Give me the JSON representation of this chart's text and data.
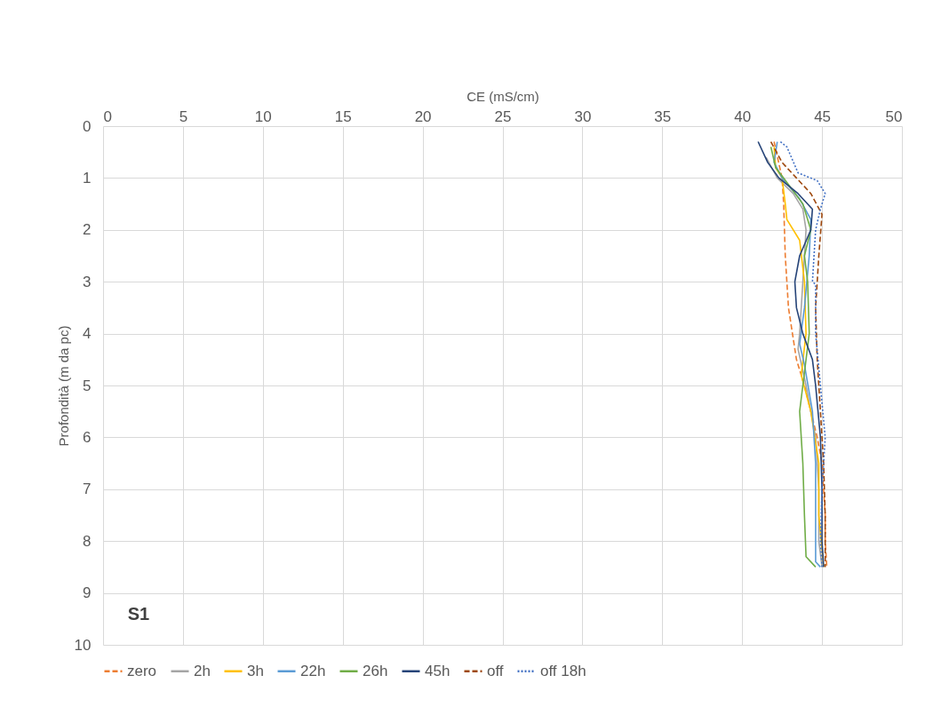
{
  "chart_data": {
    "type": "line",
    "xlabel": "CE (mS/cm)",
    "ylabel": "Profondità (m da pc)",
    "xlim": [
      0,
      50
    ],
    "xticks": [
      0,
      5,
      10,
      15,
      20,
      25,
      30,
      35,
      40,
      45,
      50
    ],
    "ylim": [
      10,
      0
    ],
    "yticks": [
      0,
      1,
      2,
      3,
      4,
      5,
      6,
      7,
      8,
      9,
      10
    ],
    "grid": true,
    "legend": "bottom",
    "annotations": [
      "S1"
    ],
    "series": [
      {
        "name": "zero",
        "color": "#ed7d31",
        "line_style": "dashed",
        "x": [
          42.0,
          42.5,
          42.6,
          42.7,
          42.9,
          43.4,
          43.6,
          43.9,
          44.3,
          44.7,
          45.0,
          45.1,
          45.2,
          45.2,
          45.3
        ],
        "values": [
          0.3,
          1.0,
          1.5,
          2.5,
          3.5,
          4.5,
          4.7,
          5.0,
          5.5,
          6.0,
          6.5,
          7.0,
          7.5,
          8.0,
          8.5
        ]
      },
      {
        "name": "2h",
        "color": "#a5a5a5",
        "line_style": "solid",
        "x": [
          41.5,
          42.2,
          43.2,
          43.8,
          44.0,
          43.8,
          43.6,
          43.5,
          44.0,
          44.6,
          44.8,
          44.8,
          45.0
        ],
        "values": [
          0.6,
          1.0,
          1.3,
          1.6,
          2.0,
          3.0,
          4.0,
          4.3,
          5.0,
          6.0,
          7.0,
          8.0,
          8.5
        ]
      },
      {
        "name": "3h",
        "color": "#ffc000",
        "line_style": "solid",
        "x": [
          42.0,
          42.1,
          42.5,
          42.7,
          42.8,
          43.6,
          43.9,
          44.0,
          43.7,
          44.3,
          44.8,
          44.8,
          45.1
        ],
        "values": [
          0.4,
          0.8,
          1.0,
          1.5,
          1.8,
          2.2,
          3.0,
          4.0,
          4.8,
          5.5,
          6.5,
          7.5,
          8.5
        ]
      },
      {
        "name": "22h",
        "color": "#5b9bd5",
        "line_style": "solid",
        "x": [
          42.2,
          42.0,
          42.5,
          43.6,
          44.3,
          44.2,
          43.9,
          43.6,
          43.9,
          44.4,
          44.6,
          44.6,
          44.6,
          44.9
        ],
        "values": [
          0.3,
          0.7,
          1.0,
          1.4,
          1.8,
          2.5,
          3.5,
          4.2,
          4.6,
          5.5,
          6.5,
          7.5,
          8.4,
          8.5
        ]
      },
      {
        "name": "26h",
        "color": "#70ad47",
        "line_style": "solid",
        "x": [
          41.8,
          42.1,
          42.6,
          43.8,
          44.3,
          43.9,
          44.1,
          44.2,
          43.8,
          43.6,
          43.8,
          43.9,
          44.0,
          44.6
        ],
        "values": [
          0.4,
          0.8,
          1.0,
          1.5,
          2.0,
          2.5,
          3.0,
          4.0,
          5.0,
          5.5,
          6.5,
          7.5,
          8.3,
          8.5
        ]
      },
      {
        "name": "45h",
        "color": "#264478",
        "line_style": "solid",
        "x": [
          41.0,
          41.6,
          42.3,
          43.5,
          44.4,
          44.3,
          43.6,
          43.3,
          43.4,
          43.8,
          44.4,
          44.6,
          44.9,
          45.0,
          45.0,
          45.1
        ],
        "values": [
          0.3,
          0.7,
          1.0,
          1.3,
          1.6,
          2.0,
          2.5,
          3.0,
          3.5,
          4.0,
          4.5,
          5.0,
          6.0,
          7.0,
          8.0,
          8.5
        ]
      },
      {
        "name": "off",
        "color": "#9e480e",
        "line_style": "dashed",
        "x": [
          41.8,
          42.5,
          43.4,
          44.3,
          45.0,
          44.8,
          44.6,
          44.7,
          44.9,
          45.1,
          45.2,
          45.2
        ],
        "values": [
          0.3,
          0.7,
          1.0,
          1.3,
          1.7,
          2.5,
          3.5,
          4.5,
          5.5,
          6.5,
          7.5,
          8.5
        ]
      },
      {
        "name": "off 18h",
        "color": "#4472c4",
        "line_style": "dotted",
        "x": [
          42.4,
          42.8,
          43.5,
          44.7,
          45.2,
          44.9,
          44.6,
          44.4,
          44.6,
          44.6,
          44.9,
          45.2,
          45.0,
          44.9,
          45.0
        ],
        "values": [
          0.3,
          0.4,
          0.9,
          1.05,
          1.3,
          1.6,
          2.0,
          3.0,
          3.05,
          4.0,
          5.0,
          6.0,
          7.0,
          8.0,
          8.5
        ]
      }
    ]
  }
}
